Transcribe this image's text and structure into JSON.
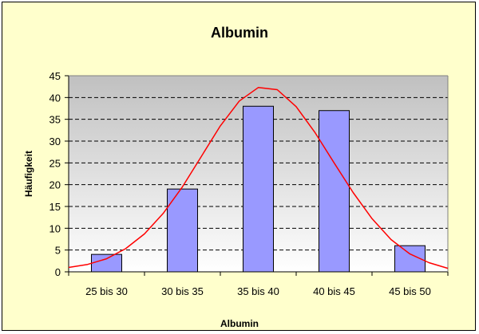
{
  "chart_data": {
    "type": "bar",
    "title": "Albumin",
    "xlabel": "Albumin",
    "ylabel": "Häufigkeit",
    "categories": [
      "25 bis 30",
      "30 bis 35",
      "35 bis 40",
      "40 bis 45",
      "45 bis 50"
    ],
    "values": [
      4,
      19,
      38,
      37,
      6
    ],
    "ylim": [
      0,
      45
    ],
    "yticks": [
      0,
      5,
      10,
      15,
      20,
      25,
      30,
      35,
      40,
      45
    ],
    "grid": true,
    "legend": "none",
    "overlay_curve": {
      "type": "line",
      "description_points_x_category_index": [
        -0.5,
        -0.25,
        0,
        0.25,
        0.5,
        0.75,
        1,
        1.25,
        1.5,
        1.75,
        2,
        2.25,
        2.5,
        2.75,
        3,
        3.25,
        3.5,
        3.75,
        4,
        4.25,
        4.5
      ],
      "y": [
        1.0,
        1.7,
        3.0,
        5.3,
        8.7,
        13.5,
        19.5,
        26.5,
        33.5,
        39.2,
        42.3,
        41.8,
        37.9,
        31.9,
        25.0,
        18.2,
        12.2,
        7.4,
        4.1,
        2.1,
        0.8
      ]
    },
    "colors": {
      "bar_fill": "#9999ff",
      "bar_stroke": "#000000",
      "curve": "#ff0000",
      "background": "#ffffcc",
      "plot_top": "#c0c0c0",
      "plot_bottom": "#ffffff"
    }
  }
}
